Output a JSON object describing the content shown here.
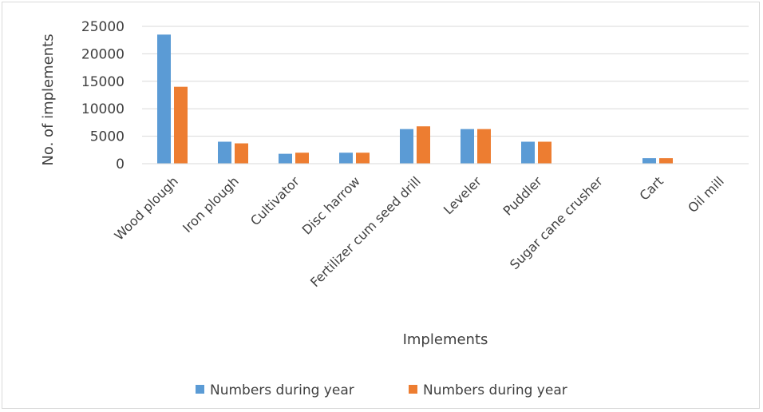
{
  "chart_data": {
    "type": "bar",
    "categories": [
      "Wood plough",
      "Iron plough",
      "Cultivator",
      "Disc harrow",
      "Fertilizer cum seed drill",
      "Leveler",
      "Puddler",
      "Sugar cane crusher",
      "Cart",
      "Oil mill"
    ],
    "series": [
      {
        "name": "Numbers during year",
        "color": "#5B9BD5",
        "values": [
          23500,
          4000,
          1800,
          2000,
          6300,
          6300,
          4000,
          0,
          1000,
          0
        ]
      },
      {
        "name": "Numbers during year",
        "color": "#ED7D31",
        "values": [
          14000,
          3700,
          2000,
          2000,
          6800,
          6300,
          4000,
          0,
          1000,
          0
        ]
      }
    ],
    "title": "",
    "xlabel": "Implements",
    "ylabel": "No. of implements",
    "ylim": [
      0,
      25000
    ],
    "yticks": [
      0,
      5000,
      10000,
      15000,
      20000,
      25000
    ],
    "grid": true,
    "legend": "bottom"
  }
}
